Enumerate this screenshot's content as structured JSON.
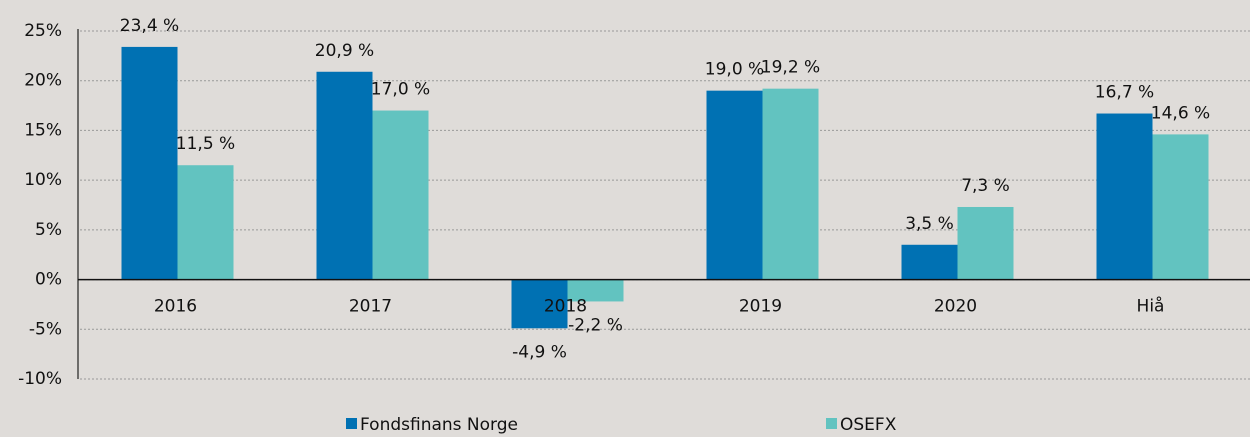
{
  "chart_data": {
    "type": "bar",
    "categories": [
      "2016",
      "2017",
      "2018",
      "2019",
      "2020",
      "Hiå"
    ],
    "series": [
      {
        "name": "Fondsfinans Norge",
        "color": "#0071b3",
        "values": [
          23.4,
          20.9,
          -4.9,
          19.0,
          3.5,
          16.7
        ],
        "value_labels": [
          "23,4 %",
          "20,9 %",
          "-4,9 %",
          "19,0 %",
          "3,5 %",
          "16,7 %"
        ]
      },
      {
        "name": "OSEFX",
        "color": "#62c3c0",
        "values": [
          11.5,
          17.0,
          -2.2,
          19.2,
          7.3,
          14.6
        ],
        "value_labels": [
          "11,5 %",
          "17,0 %",
          "-2,2 %",
          "19,2 %",
          "7,3 %",
          "14,6 %"
        ]
      }
    ],
    "ylim": [
      -10,
      25
    ],
    "yticks": [
      {
        "value": -10,
        "label": "-10%"
      },
      {
        "value": -5,
        "label": "-5%"
      },
      {
        "value": 0,
        "label": "0%"
      },
      {
        "value": 5,
        "label": "5%"
      },
      {
        "value": 10,
        "label": "10%"
      },
      {
        "value": 15,
        "label": "15%"
      },
      {
        "value": 20,
        "label": "20%"
      },
      {
        "value": 25,
        "label": "25%"
      }
    ],
    "grid": true,
    "legend": "bottom"
  }
}
